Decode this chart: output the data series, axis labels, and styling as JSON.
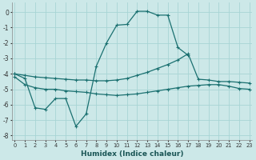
{
  "xlabel": "Humidex (Indice chaleur)",
  "xlim": [
    -0.3,
    23.3
  ],
  "ylim": [
    -8.3,
    0.6
  ],
  "bg_color": "#cce8e8",
  "grid_color": "#a8d4d4",
  "line_color": "#1a7070",
  "yticks": [
    0,
    -1,
    -2,
    -3,
    -4,
    -5,
    -6,
    -7,
    -8
  ],
  "xtick_labels": [
    "0",
    "1",
    "2",
    "3",
    "4",
    "5",
    "6",
    "7",
    "8",
    "9",
    "10",
    "11",
    "12",
    "13",
    "14",
    "15",
    "16",
    "17",
    "18",
    "19",
    "20",
    "21",
    "22",
    "23"
  ],
  "line1_x": [
    0,
    1,
    2,
    3,
    4,
    5,
    6,
    7,
    8,
    9,
    10,
    11,
    12,
    13,
    14,
    15,
    16,
    17
  ],
  "line1_y": [
    -4.0,
    -4.3,
    -6.2,
    -6.3,
    -5.6,
    -5.6,
    -7.4,
    -6.6,
    -3.5,
    -2.0,
    -0.85,
    -0.8,
    0.05,
    0.05,
    -0.2,
    -0.2,
    -2.3,
    -2.8
  ],
  "line2_x": [
    0,
    1,
    2,
    3,
    4,
    5,
    6,
    7,
    8,
    9,
    10,
    11,
    12,
    13,
    14,
    15,
    16,
    17,
    18,
    19,
    20,
    21,
    22,
    23
  ],
  "line2_y": [
    -4.0,
    -4.1,
    -4.2,
    -4.25,
    -4.3,
    -4.35,
    -4.4,
    -4.4,
    -4.45,
    -4.45,
    -4.4,
    -4.3,
    -4.1,
    -3.9,
    -3.65,
    -3.4,
    -3.1,
    -2.7,
    -4.35,
    -4.4,
    -4.5,
    -4.5,
    -4.55,
    -4.6
  ],
  "line3_x": [
    0,
    1,
    2,
    3,
    4,
    5,
    6,
    7,
    8,
    9,
    10,
    11,
    12,
    13,
    14,
    15,
    16,
    17,
    18,
    19,
    20,
    21,
    22,
    23
  ],
  "line3_y": [
    -4.2,
    -4.7,
    -4.9,
    -5.0,
    -5.0,
    -5.1,
    -5.15,
    -5.2,
    -5.3,
    -5.35,
    -5.4,
    -5.35,
    -5.3,
    -5.2,
    -5.1,
    -5.0,
    -4.9,
    -4.8,
    -4.75,
    -4.7,
    -4.7,
    -4.8,
    -4.95,
    -5.0
  ]
}
